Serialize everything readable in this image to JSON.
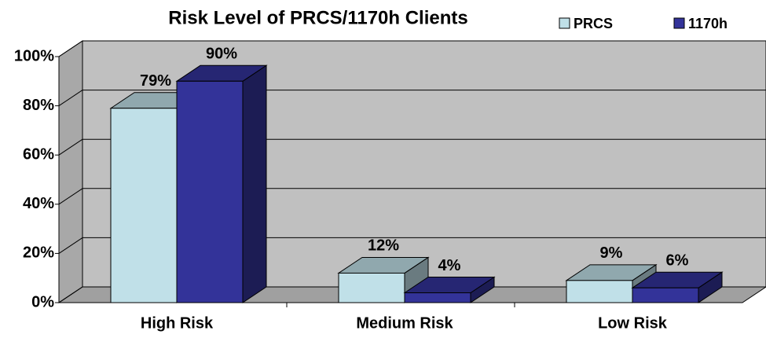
{
  "chart_data": {
    "type": "bar3d",
    "title": "Risk Level of PRCS/1170h Clients",
    "categories": [
      "High Risk",
      "Medium Risk",
      "Low Risk"
    ],
    "series": [
      {
        "name": "PRCS",
        "color": "#c0e0e8",
        "values": [
          79,
          12,
          9
        ],
        "value_labels": [
          "79%",
          "12%",
          "9%"
        ]
      },
      {
        "name": "1170h",
        "color": "#333399",
        "values": [
          90,
          4,
          6
        ],
        "value_labels": [
          "90%",
          "4%",
          "6%"
        ]
      }
    ],
    "ylim": [
      0,
      100
    ],
    "yticks": [
      {
        "value": 0,
        "label": "0%"
      },
      {
        "value": 20,
        "label": "20%"
      },
      {
        "value": 40,
        "label": "40%"
      },
      {
        "value": 60,
        "label": "60%"
      },
      {
        "value": 80,
        "label": "80%"
      },
      {
        "value": 100,
        "label": "100%"
      }
    ],
    "grid": true,
    "legend": "top-right"
  }
}
